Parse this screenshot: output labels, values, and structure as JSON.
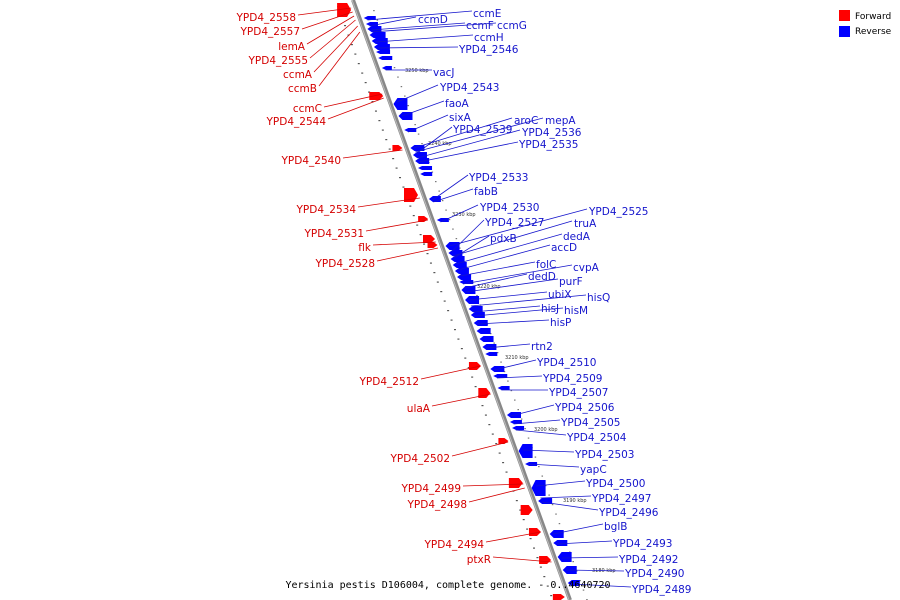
{
  "title": "Yersinia pestis D106004, complete genome. - 0..4640720",
  "legend": {
    "forward": {
      "label": "Forward",
      "color": "#ff0000"
    },
    "reverse": {
      "label": "Reverse",
      "color": "#0000ff"
    }
  },
  "scale_ticks": [
    "3250 kbp",
    "3240 kbp",
    "3230 kbp",
    "3220 kbp",
    "3210 kbp",
    "3200 kbp",
    "3190 kbp",
    "3180 kbp"
  ],
  "forward_labels": [
    "YPD4_2558",
    "YPD4_2557",
    "lemA",
    "YPD4_2555",
    "ccmA",
    "ccmB",
    "ccmC",
    "YPD4_2544",
    "YPD4_2540",
    "YPD4_2534",
    "YPD4_2531",
    "flk",
    "YPD4_2528",
    "YPD4_2512",
    "ulaA",
    "YPD4_2502",
    "YPD4_2499",
    "YPD4_2498",
    "YPD4_2494",
    "ptxR"
  ],
  "reverse_labels": [
    "ccmE",
    "ccmD",
    "ccmF",
    "ccmG",
    "ccmH",
    "YPD4_2546",
    "vacJ",
    "YPD4_2543",
    "faoA",
    "sixA",
    "aroC",
    "mepA",
    "YPD4_2539",
    "YPD4_2536",
    "YPD4_2535",
    "YPD4_2533",
    "fabB",
    "YPD4_2530",
    "YPD4_2525",
    "YPD4_2527",
    "truA",
    "pdxB",
    "dedA",
    "accD",
    "folC",
    "cvpA",
    "dedD",
    "purF",
    "ubiX",
    "hisQ",
    "hisJ",
    "hisM",
    "hisP",
    "rtn2",
    "YPD4_2510",
    "YPD4_2509",
    "YPD4_2507",
    "YPD4_2506",
    "YPD4_2505",
    "YPD4_2504",
    "YPD4_2503",
    "yapC",
    "YPD4_2500",
    "YPD4_2497",
    "YPD4_2496",
    "bglB",
    "YPD4_2493",
    "YPD4_2492",
    "YPD4_2490",
    "YPD4_2489"
  ]
}
